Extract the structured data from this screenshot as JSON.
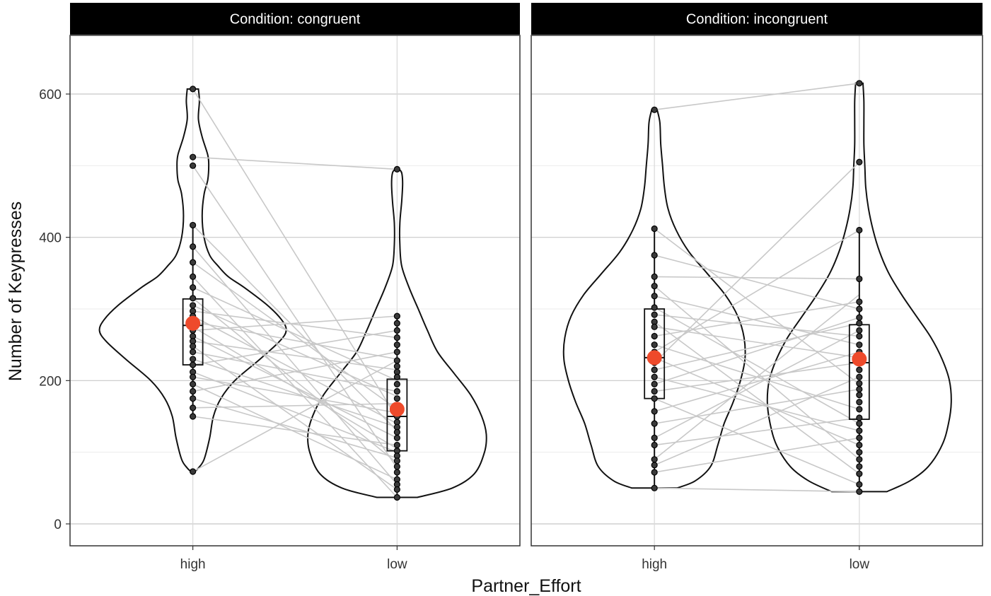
{
  "chart_data": {
    "type": "violin",
    "xlabel": "Partner_Effort",
    "ylabel": "Number of Keypresses",
    "ylim": [
      -27,
      680
    ],
    "yticks": [
      0,
      200,
      400,
      600
    ],
    "categories": [
      "high",
      "low"
    ],
    "grid": true,
    "colors": {
      "mean_point": "#ee4a2b",
      "paired_line": "#c8c8c8",
      "strip": "#000000"
    },
    "panels": [
      {
        "label": "Condition: congruent",
        "groups": [
          {
            "category": "high",
            "box": {
              "q1": 222,
              "median": 277,
              "q3": 314
            },
            "whisker": [
              150,
              417
            ],
            "mean": 280,
            "violin": [
              [
                73,
                0.02
              ],
              [
                78,
                0.06
              ],
              [
                90,
                0.12
              ],
              [
                120,
                0.18
              ],
              [
                150,
                0.22
              ],
              [
                175,
                0.3
              ],
              [
                200,
                0.45
              ],
              [
                230,
                0.72
              ],
              [
                255,
                0.93
              ],
              [
                270,
                1.0
              ],
              [
                285,
                0.95
              ],
              [
                305,
                0.8
              ],
              [
                330,
                0.55
              ],
              [
                345,
                0.38
              ],
              [
                360,
                0.27
              ],
              [
                375,
                0.18
              ],
              [
                400,
                0.12
              ],
              [
                430,
                0.1
              ],
              [
                460,
                0.12
              ],
              [
                480,
                0.16
              ],
              [
                500,
                0.17
              ],
              [
                515,
                0.16
              ],
              [
                540,
                0.1
              ],
              [
                565,
                0.06
              ],
              [
                590,
                0.07
              ],
              [
                607,
                0.06
              ]
            ],
            "points": [
              607,
              512,
              500,
              417,
              387,
              365,
              345,
              330,
              315,
              305,
              297,
              290,
              282,
              275,
              270,
              262,
              255,
              248,
              240,
              230,
              222,
              212,
              205,
              195,
              185,
              175,
              162,
              150,
              73
            ]
          },
          {
            "category": "low",
            "box": {
              "q1": 102,
              "median": 150,
              "q3": 202
            },
            "whisker": [
              37,
              290
            ],
            "mean": 160,
            "violin": [
              [
                37,
                0.22
              ],
              [
                50,
                0.6
              ],
              [
                70,
                0.84
              ],
              [
                100,
                0.95
              ],
              [
                125,
                0.97
              ],
              [
                150,
                0.92
              ],
              [
                180,
                0.8
              ],
              [
                210,
                0.62
              ],
              [
                240,
                0.44
              ],
              [
                270,
                0.33
              ],
              [
                300,
                0.23
              ],
              [
                330,
                0.13
              ],
              [
                360,
                0.05
              ],
              [
                390,
                0.03
              ],
              [
                420,
                0.03
              ],
              [
                450,
                0.05
              ],
              [
                475,
                0.06
              ],
              [
                490,
                0.05
              ],
              [
                495,
                0.02
              ]
            ],
            "points": [
              495,
              290,
              280,
              270,
              260,
              250,
              240,
              228,
              220,
              212,
              205,
              195,
              185,
              175,
              165,
              158,
              150,
              142,
              135,
              128,
              120,
              110,
              102,
              95,
              88,
              80,
              72,
              62,
              55,
              48,
              37
            ]
          }
        ],
        "pairs": [
          [
            607,
            148
          ],
          [
            512,
            495
          ],
          [
            500,
            78
          ],
          [
            417,
            130
          ],
          [
            387,
            55
          ],
          [
            365,
            160
          ],
          [
            345,
            37
          ],
          [
            330,
            200
          ],
          [
            315,
            85
          ],
          [
            305,
            178
          ],
          [
            297,
            260
          ],
          [
            290,
            140
          ],
          [
            282,
            230
          ],
          [
            275,
            105
          ],
          [
            270,
            290
          ],
          [
            262,
            120
          ],
          [
            255,
            215
          ],
          [
            248,
            48
          ],
          [
            240,
            185
          ],
          [
            230,
            135
          ],
          [
            222,
            270
          ],
          [
            212,
            100
          ],
          [
            205,
            155
          ],
          [
            195,
            62
          ],
          [
            185,
            240
          ],
          [
            175,
            92
          ],
          [
            162,
            168
          ],
          [
            150,
            110
          ],
          [
            73,
            228
          ]
        ]
      },
      {
        "label": "Condition: incongruent",
        "groups": [
          {
            "category": "high",
            "box": {
              "q1": 175,
              "median": 232,
              "q3": 300
            },
            "whisker": [
              50,
              412
            ],
            "mean": 232,
            "violin": [
              [
                50,
                0.25
              ],
              [
                60,
                0.45
              ],
              [
                80,
                0.62
              ],
              [
                110,
                0.7
              ],
              [
                140,
                0.77
              ],
              [
                170,
                0.87
              ],
              [
                200,
                0.95
              ],
              [
                230,
                1.0
              ],
              [
                260,
                0.99
              ],
              [
                290,
                0.92
              ],
              [
                320,
                0.78
              ],
              [
                350,
                0.58
              ],
              [
                380,
                0.38
              ],
              [
                410,
                0.24
              ],
              [
                440,
                0.15
              ],
              [
                470,
                0.11
              ],
              [
                500,
                0.09
              ],
              [
                530,
                0.07
              ],
              [
                560,
                0.06
              ],
              [
                578,
                0.03
              ]
            ],
            "points": [
              578,
              412,
              375,
              345,
              332,
              318,
              302,
              292,
              282,
              275,
              262,
              250,
              240,
              232,
              225,
              215,
              205,
              195,
              185,
              175,
              157,
              140,
              120,
              110,
              90,
              82,
              72,
              50
            ]
          },
          {
            "category": "low",
            "box": {
              "q1": 146,
              "median": 225,
              "q3": 278
            },
            "whisker": [
              45,
              410
            ],
            "mean": 230,
            "violin": [
              [
                45,
                0.3
              ],
              [
                60,
                0.55
              ],
              [
                80,
                0.75
              ],
              [
                110,
                0.9
              ],
              [
                140,
                0.97
              ],
              [
                170,
                1.0
              ],
              [
                200,
                0.98
              ],
              [
                230,
                0.9
              ],
              [
                260,
                0.78
              ],
              [
                290,
                0.62
              ],
              [
                320,
                0.46
              ],
              [
                350,
                0.32
              ],
              [
                380,
                0.22
              ],
              [
                410,
                0.15
              ],
              [
                440,
                0.1
              ],
              [
                470,
                0.07
              ],
              [
                500,
                0.06
              ],
              [
                530,
                0.05
              ],
              [
                560,
                0.05
              ],
              [
                590,
                0.05
              ],
              [
                615,
                0.04
              ]
            ],
            "points": [
              615,
              505,
              410,
              342,
              310,
              300,
              288,
              280,
              270,
              262,
              250,
              240,
              232,
              225,
              215,
              205,
              196,
              188,
              180,
              170,
              160,
              148,
              140,
              130,
              120,
              110,
              100,
              90,
              80,
              70,
              55,
              45
            ]
          }
        ],
        "pairs": [
          [
            578,
            615
          ],
          [
            412,
            195
          ],
          [
            375,
            300
          ],
          [
            345,
            342
          ],
          [
            332,
            90
          ],
          [
            318,
            250
          ],
          [
            302,
            140
          ],
          [
            292,
            262
          ],
          [
            282,
            70
          ],
          [
            275,
            232
          ],
          [
            262,
            310
          ],
          [
            250,
            160
          ],
          [
            240,
            410
          ],
          [
            232,
            110
          ],
          [
            225,
            505
          ],
          [
            215,
            280
          ],
          [
            205,
            130
          ],
          [
            195,
            288
          ],
          [
            185,
            225
          ],
          [
            175,
            55
          ],
          [
            157,
            240
          ],
          [
            140,
            188
          ],
          [
            120,
            270
          ],
          [
            110,
            148
          ],
          [
            90,
            320
          ],
          [
            82,
            205
          ],
          [
            72,
            120
          ],
          [
            50,
            45
          ]
        ]
      }
    ]
  }
}
